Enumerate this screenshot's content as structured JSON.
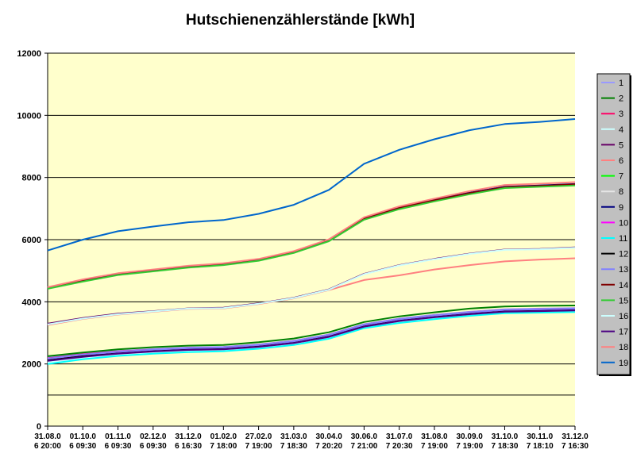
{
  "chart_data": {
    "type": "line",
    "title": "Hutschienenzählerstände [kWh]",
    "xlabel": "",
    "ylabel": "",
    "ylim": [
      0,
      12000
    ],
    "yticks": [
      0,
      2000,
      4000,
      6000,
      8000,
      10000,
      12000
    ],
    "grid": true,
    "legend_position": "right",
    "categories": [
      [
        "31.08.0",
        "6 20:00"
      ],
      [
        "01.10.0",
        "6 09:30"
      ],
      [
        "01.11.0",
        "6 09:30"
      ],
      [
        "02.12.0",
        "6 09:30"
      ],
      [
        "31.12.0",
        "6 16:30"
      ],
      [
        "01.02.0",
        "7 18:00"
      ],
      [
        "27.02.0",
        "7 19:00"
      ],
      [
        "31.03.0",
        "7 18:30"
      ],
      [
        "30.04.0",
        "7 20:20"
      ],
      [
        "30.06.0",
        "7 21:00"
      ],
      [
        "31.07.0",
        "7 20:30"
      ],
      [
        "31.08.0",
        "7 19:00"
      ],
      [
        "30.09.0",
        "7 19:00"
      ],
      [
        "31.10.0",
        "7 18:30"
      ],
      [
        "30.11.0",
        "7 18:10"
      ],
      [
        "31.12.0",
        "7 16:30"
      ]
    ],
    "series": [
      {
        "name": "1",
        "color": "#9999ff",
        "values": [
          2200,
          2330,
          2420,
          2480,
          2530,
          2550,
          2630,
          2750,
          2950,
          3280,
          3460,
          3580,
          3680,
          3760,
          3780,
          3800
        ]
      },
      {
        "name": "2",
        "color": "#008000",
        "values": [
          2250,
          2370,
          2470,
          2540,
          2590,
          2610,
          2700,
          2820,
          3020,
          3350,
          3530,
          3660,
          3780,
          3850,
          3870,
          3880
        ]
      },
      {
        "name": "3",
        "color": "#ff0066",
        "values": [
          2180,
          2310,
          2400,
          2460,
          2510,
          2530,
          2610,
          2730,
          2930,
          3260,
          3440,
          3560,
          3660,
          3740,
          3760,
          3780
        ]
      },
      {
        "name": "4",
        "color": "#ccffff",
        "values": [
          2050,
          2200,
          2300,
          2370,
          2420,
          2450,
          2530,
          2650,
          2850,
          3180,
          3350,
          3470,
          3580,
          3660,
          3680,
          3700
        ]
      },
      {
        "name": "5",
        "color": "#660066",
        "values": [
          3300,
          3480,
          3620,
          3700,
          3790,
          3810,
          3950,
          4130,
          4400,
          4900,
          5180,
          5380,
          5550,
          5680,
          5700,
          5750
        ]
      },
      {
        "name": "6",
        "color": "#ff8080",
        "values": [
          3250,
          3450,
          3590,
          3680,
          3770,
          3790,
          3930,
          4110,
          4380,
          4700,
          4850,
          5040,
          5180,
          5300,
          5360,
          5400
        ]
      },
      {
        "name": "7",
        "color": "#00ff00",
        "values": [
          4440,
          4680,
          4880,
          5000,
          5120,
          5200,
          5340,
          5590,
          5970,
          6660,
          7000,
          7250,
          7480,
          7680,
          7720,
          7760
        ]
      },
      {
        "name": "8",
        "color": "#e6e6e6",
        "values": [
          4460,
          4700,
          4900,
          5020,
          5140,
          5220,
          5360,
          5610,
          5990,
          6690,
          7040,
          7290,
          7520,
          7710,
          7750,
          7800
        ]
      },
      {
        "name": "9",
        "color": "#000080",
        "values": [
          4450,
          4690,
          4890,
          5010,
          5130,
          5210,
          5350,
          5600,
          5980,
          6680,
          7030,
          7280,
          7510,
          7700,
          7740,
          7790
        ]
      },
      {
        "name": "10",
        "color": "#ff00ff",
        "values": [
          2150,
          2280,
          2370,
          2440,
          2490,
          2510,
          2590,
          2710,
          2910,
          3240,
          3420,
          3540,
          3640,
          3720,
          3740,
          3760
        ]
      },
      {
        "name": "11",
        "color": "#00ffff",
        "values": [
          2000,
          2150,
          2260,
          2330,
          2380,
          2410,
          2490,
          2610,
          2810,
          3150,
          3320,
          3440,
          3550,
          3630,
          3650,
          3670
        ]
      },
      {
        "name": "12",
        "color": "#000000",
        "values": [
          2120,
          2250,
          2340,
          2410,
          2460,
          2480,
          2560,
          2680,
          2880,
          3210,
          3390,
          3510,
          3610,
          3690,
          3710,
          3730
        ]
      },
      {
        "name": "13",
        "color": "#8080ff",
        "values": [
          2170,
          2300,
          2390,
          2460,
          2510,
          2530,
          2610,
          2730,
          2930,
          3260,
          3440,
          3560,
          3660,
          3740,
          3760,
          3780
        ]
      },
      {
        "name": "14",
        "color": "#800000",
        "values": [
          4430,
          4670,
          4870,
          4990,
          5110,
          5190,
          5330,
          5580,
          5960,
          6670,
          7020,
          7270,
          7500,
          7690,
          7730,
          7780
        ]
      },
      {
        "name": "15",
        "color": "#33cc33",
        "values": [
          4420,
          4650,
          4860,
          4980,
          5100,
          5180,
          5320,
          5570,
          5950,
          6640,
          6980,
          7230,
          7460,
          7660,
          7700,
          7740
        ]
      },
      {
        "name": "16",
        "color": "#ccffff",
        "values": [
          3270,
          3460,
          3600,
          3690,
          3780,
          3800,
          3940,
          4120,
          4390,
          4890,
          5170,
          5370,
          5540,
          5670,
          5690,
          5740
        ]
      },
      {
        "name": "17",
        "color": "#4b0082",
        "values": [
          2100,
          2230,
          2330,
          2400,
          2450,
          2470,
          2550,
          2670,
          2870,
          3200,
          3380,
          3500,
          3600,
          3680,
          3700,
          3720
        ]
      },
      {
        "name": "18",
        "color": "#ff8080",
        "values": [
          4470,
          4720,
          4920,
          5040,
          5160,
          5240,
          5380,
          5630,
          6010,
          6720,
          7070,
          7320,
          7560,
          7760,
          7800,
          7850
        ]
      },
      {
        "name": "19",
        "color": "#0066cc",
        "values": [
          5650,
          6000,
          6270,
          6420,
          6560,
          6630,
          6830,
          7120,
          7600,
          8440,
          8890,
          9230,
          9520,
          9720,
          9790,
          9880
        ]
      }
    ]
  }
}
